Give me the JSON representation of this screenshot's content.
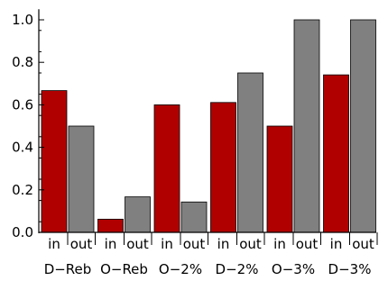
{
  "chart_data": {
    "type": "bar",
    "title": "",
    "xlabel": "",
    "ylabel": "",
    "ylim": [
      0,
      1.05
    ],
    "yticks": [
      "0.0",
      "0.2",
      "0.4",
      "0.6",
      "0.8",
      "1.0"
    ],
    "ytick_values": [
      0,
      0.2,
      0.4,
      0.6,
      0.8,
      1.0
    ],
    "categories": [
      "D−Reb",
      "O−Reb",
      "O−2%",
      "D−2%",
      "O−3%",
      "D−3%"
    ],
    "sub_categories": [
      "in",
      "out"
    ],
    "series": [
      {
        "key": "in",
        "color": "#b00000",
        "values": [
          0.667,
          0.062,
          0.6,
          0.611,
          0.5,
          0.741
        ]
      },
      {
        "key": "out",
        "color": "#808080",
        "values": [
          0.5,
          0.167,
          0.143,
          0.75,
          1.0,
          1.0
        ]
      }
    ],
    "grid": false,
    "legend": "none"
  }
}
